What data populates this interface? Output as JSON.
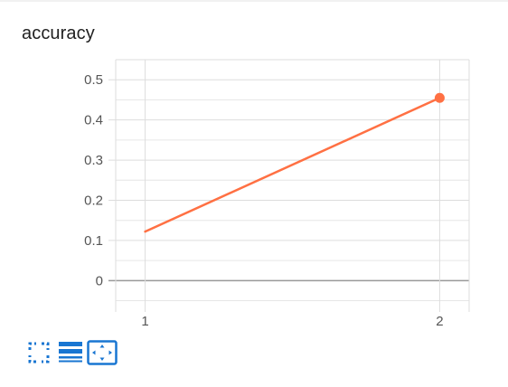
{
  "card": {
    "title": "accuracy"
  },
  "chart_data": {
    "type": "line",
    "title": "accuracy",
    "xlabel": "",
    "ylabel": "",
    "x_ticks": [
      "1",
      "2"
    ],
    "y_ticks": [
      "0",
      "0.1",
      "0.2",
      "0.3",
      "0.4",
      "0.5"
    ],
    "xlim": [
      0.9,
      2.1
    ],
    "ylim": [
      -0.06,
      0.55
    ],
    "grid": true,
    "legend": "none",
    "series": [
      {
        "color": "#ff7043",
        "x": [
          1,
          2
        ],
        "y": [
          0.122,
          0.455
        ],
        "marker_last": true
      }
    ]
  },
  "toolbar": {
    "buttons": [
      {
        "name": "fullscreen-button",
        "icon": "fullscreen-icon",
        "color": "#1976d2"
      },
      {
        "name": "toggle-log-scale-button",
        "icon": "list-lines-icon",
        "color": "#1976d2"
      },
      {
        "name": "fit-domain-button",
        "icon": "fit-to-domain-icon",
        "color": "#1976d2"
      }
    ]
  },
  "colors": {
    "accent": "#1976d2",
    "series": "#ff7043",
    "grid": "#dddddd",
    "zero_line": "#999999"
  }
}
